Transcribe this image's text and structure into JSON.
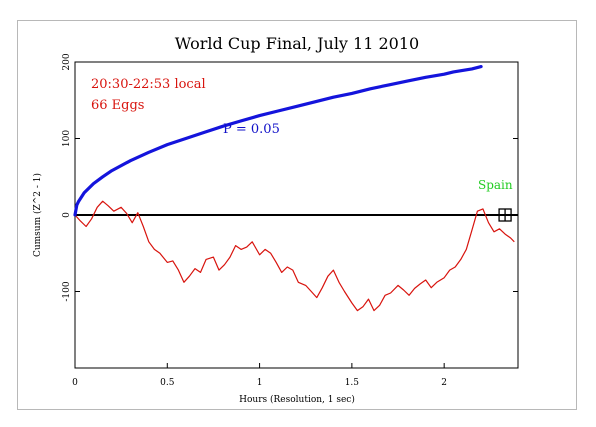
{
  "chart_data": {
    "type": "line",
    "title": "World Cup Final, July 11 2010",
    "xlabel": "Hours (Resolution, 1 sec)",
    "ylabel": "Cumsum (Z^2 - 1)",
    "xlim": [
      0,
      2.4
    ],
    "ylim": [
      -200,
      200
    ],
    "x_ticks": [
      0,
      0.5,
      1,
      1.5,
      2
    ],
    "x_tick_labels": [
      "0",
      "0.5",
      "1",
      "1.5",
      "2"
    ],
    "y_ticks": [
      -100,
      0,
      100,
      200
    ],
    "y_tick_labels": [
      "-100",
      "0",
      "100",
      "200"
    ],
    "grid": false,
    "annotations": {
      "time_range": "20:30-22:53 local",
      "eggs": "66 Eggs",
      "p_label": "P = 0.05",
      "event_label": "Spain"
    },
    "event_marker": {
      "x": 2.33,
      "y": 0
    },
    "series": [
      {
        "color": "#d8140e",
        "x": [
          0,
          0.03,
          0.06,
          0.09,
          0.12,
          0.15,
          0.18,
          0.21,
          0.25,
          0.28,
          0.31,
          0.34,
          0.37,
          0.4,
          0.43,
          0.46,
          0.5,
          0.53,
          0.56,
          0.59,
          0.62,
          0.65,
          0.68,
          0.71,
          0.75,
          0.78,
          0.81,
          0.84,
          0.87,
          0.9,
          0.93,
          0.96,
          1.0,
          1.03,
          1.06,
          1.09,
          1.12,
          1.15,
          1.18,
          1.21,
          1.25,
          1.28,
          1.31,
          1.34,
          1.37,
          1.4,
          1.43,
          1.46,
          1.5,
          1.53,
          1.56,
          1.59,
          1.62,
          1.65,
          1.68,
          1.71,
          1.75,
          1.78,
          1.81,
          1.84,
          1.87,
          1.9,
          1.93,
          1.96,
          2.0,
          2.03,
          2.06,
          2.09,
          2.12,
          2.15,
          2.18,
          2.21,
          2.24,
          2.27,
          2.3,
          2.33,
          2.36,
          2.38
        ],
        "y": [
          0,
          -8,
          -15,
          -5,
          10,
          18,
          12,
          5,
          10,
          2,
          -10,
          3,
          -15,
          -35,
          -45,
          -50,
          -62,
          -60,
          -72,
          -88,
          -80,
          -70,
          -75,
          -58,
          -55,
          -72,
          -65,
          -55,
          -40,
          -45,
          -42,
          -35,
          -52,
          -45,
          -50,
          -62,
          -75,
          -68,
          -72,
          -88,
          -92,
          -100,
          -108,
          -95,
          -80,
          -72,
          -88,
          -100,
          -115,
          -125,
          -120,
          -110,
          -125,
          -118,
          -105,
          -102,
          -92,
          -98,
          -105,
          -96,
          -90,
          -85,
          -95,
          -88,
          -82,
          -72,
          -68,
          -58,
          -45,
          -20,
          5,
          8,
          -10,
          -22,
          -18,
          -25,
          -30,
          -35
        ]
      },
      {
        "name": "P = 0.05",
        "color": "#1414dc",
        "x": [
          0,
          0.01,
          0.02,
          0.05,
          0.1,
          0.15,
          0.2,
          0.3,
          0.4,
          0.5,
          0.6,
          0.7,
          0.8,
          0.9,
          1.0,
          1.1,
          1.2,
          1.3,
          1.4,
          1.5,
          1.6,
          1.7,
          1.8,
          1.9,
          2.0,
          2.05,
          2.1,
          2.15,
          2.2
        ],
        "y": [
          0,
          13,
          18,
          29,
          41,
          50,
          58,
          71,
          82,
          92,
          100,
          108,
          116,
          123,
          130,
          136,
          142,
          148,
          154,
          159,
          165,
          170,
          175,
          180,
          184,
          187,
          189,
          191,
          194
        ]
      }
    ]
  }
}
